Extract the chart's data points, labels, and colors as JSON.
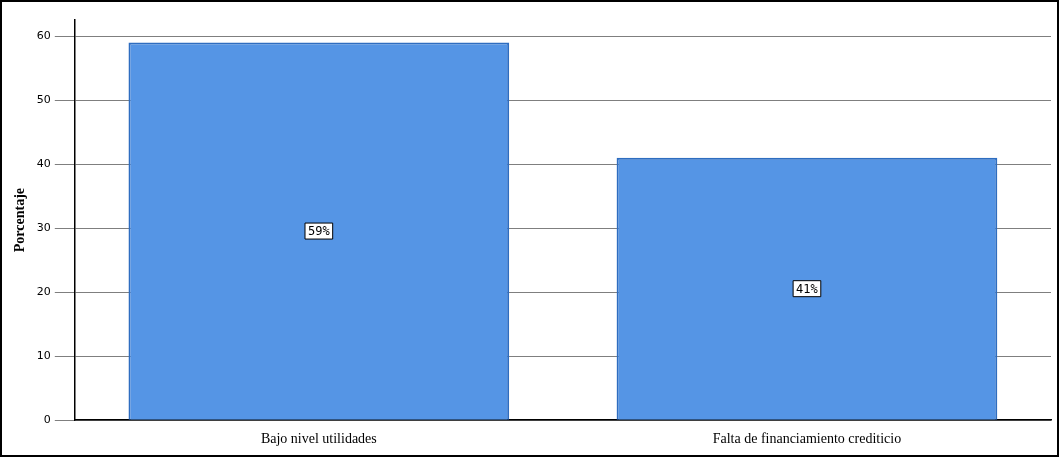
{
  "chart_data": {
    "type": "bar",
    "ylabel": "Porcentaje",
    "categories": [
      "Bajo nivel utilidades",
      "Falta de financiamiento crediticio"
    ],
    "values": [
      59,
      41
    ],
    "value_labels": [
      "59%",
      "41%"
    ],
    "color": "#5595e5",
    "ylim": [
      0,
      62.5
    ],
    "yticks": [
      0,
      10,
      20,
      30,
      40,
      50,
      60
    ],
    "grid": "y",
    "legend": false
  }
}
